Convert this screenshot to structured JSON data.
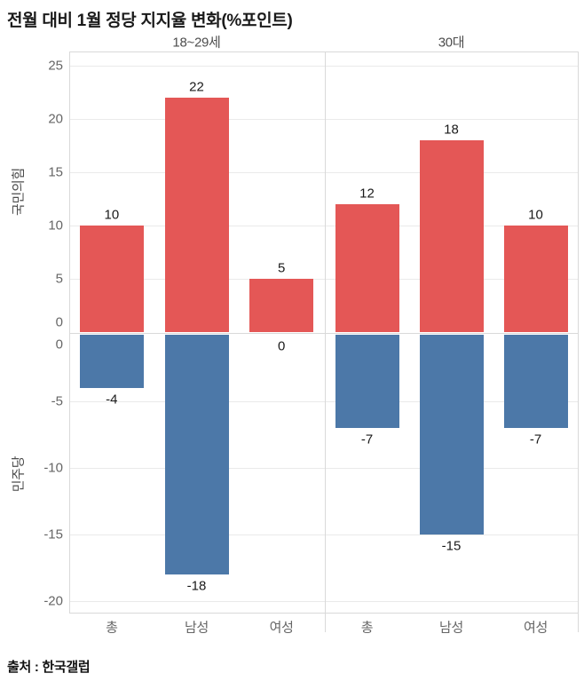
{
  "title": "전월 대비 1월 정당 지지율 변화(%포인트)",
  "source": "출처 : 한국갤럽",
  "colors": {
    "positive_bar": "#e45756",
    "negative_bar": "#4c78a8",
    "gridline": "#eaeaea",
    "axis_line": "#d9d9d9",
    "tick_label": "#666666",
    "axis_title": "#4d4d4d",
    "facet_header": "#4d4d4d",
    "value_label": "#1a1a1a",
    "x_label": "#666666"
  },
  "chart_data": {
    "type": "bar",
    "title": "전월 대비 1월 정당 지지율 변화(%포인트)",
    "subtitle": "",
    "facets": [
      {
        "label": "18~29세",
        "categories": [
          "총",
          "남성",
          "여성"
        ],
        "series": [
          {
            "name": "국민의힘",
            "values": [
              10,
              22,
              5
            ]
          },
          {
            "name": "민주당",
            "values": [
              -4,
              -18,
              0
            ]
          }
        ]
      },
      {
        "label": "30대",
        "categories": [
          "총",
          "남성",
          "여성"
        ],
        "series": [
          {
            "name": "국민의힘",
            "values": [
              12,
              18,
              10
            ]
          },
          {
            "name": "민주당",
            "values": [
              -7,
              -15,
              -7
            ]
          }
        ]
      }
    ],
    "y_axis": {
      "top_title": "국민의힘",
      "bottom_title": "민주당",
      "top_ticks": [
        25,
        20,
        15,
        10,
        5,
        0
      ],
      "bottom_ticks": [
        0,
        -5,
        -10,
        -15,
        -20
      ],
      "top_domain": [
        0,
        26.3
      ],
      "bottom_domain": [
        -20.9,
        0
      ]
    },
    "grid": true,
    "value_labels": true,
    "legend": "none",
    "source": "출처 : 한국갤럽"
  }
}
